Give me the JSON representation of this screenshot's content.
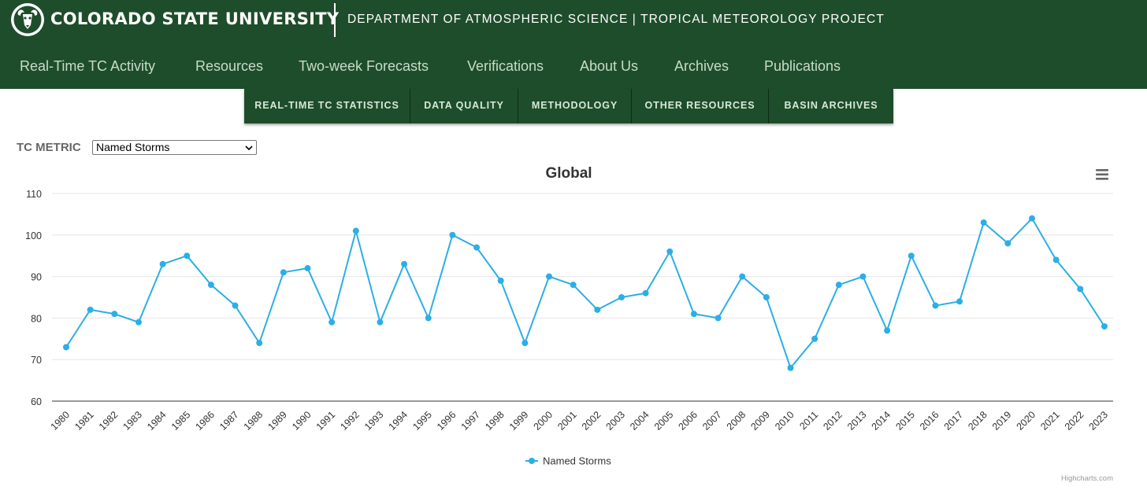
{
  "header": {
    "university": "COLORADO STATE UNIVERSITY",
    "department": "DEPARTMENT OF ATMOSPHERIC SCIENCE | TROPICAL METEOROLOGY PROJECT"
  },
  "main_nav": [
    {
      "label": "Real-Time TC Activity"
    },
    {
      "label": "Resources"
    },
    {
      "label": "Two-week Forecasts"
    },
    {
      "label": "Verifications"
    },
    {
      "label": "About Us"
    },
    {
      "label": "Archives"
    },
    {
      "label": "Publications"
    }
  ],
  "sub_nav": [
    {
      "label": "REAL-TIME TC STATISTICS"
    },
    {
      "label": "DATA QUALITY"
    },
    {
      "label": "METHODOLOGY"
    },
    {
      "label": "OTHER RESOURCES"
    },
    {
      "label": "BASIN ARCHIVES"
    }
  ],
  "metric": {
    "label": "TC METRIC",
    "selected": "Named Storms"
  },
  "credits": "Highcharts.com",
  "colors": {
    "header_bg": "#1e4d2b",
    "series": "#2caee6"
  },
  "chart_data": {
    "type": "line",
    "title": "Global",
    "xlabel": "",
    "ylabel": "",
    "ylim": [
      60,
      110
    ],
    "yticks": [
      60,
      70,
      80,
      90,
      100,
      110
    ],
    "x": [
      "1980",
      "1981",
      "1982",
      "1983",
      "1984",
      "1985",
      "1986",
      "1987",
      "1988",
      "1989",
      "1990",
      "1991",
      "1992",
      "1993",
      "1994",
      "1995",
      "1996",
      "1997",
      "1998",
      "1999",
      "2000",
      "2001",
      "2002",
      "2003",
      "2004",
      "2005",
      "2006",
      "2007",
      "2008",
      "2009",
      "2010",
      "2011",
      "2012",
      "2013",
      "2014",
      "2015",
      "2016",
      "2017",
      "2018",
      "2019",
      "2020",
      "2021",
      "2022",
      "2023"
    ],
    "series": [
      {
        "name": "Named Storms",
        "values": [
          73,
          82,
          81,
          79,
          93,
          95,
          88,
          83,
          74,
          91,
          92,
          79,
          101,
          79,
          93,
          80,
          100,
          97,
          89,
          74,
          90,
          88,
          82,
          85,
          86,
          96,
          81,
          80,
          90,
          85,
          68,
          75,
          88,
          90,
          77,
          95,
          83,
          84,
          103,
          98,
          104,
          94,
          87,
          78
        ]
      }
    ],
    "legend": "bottom-center",
    "grid": true
  }
}
